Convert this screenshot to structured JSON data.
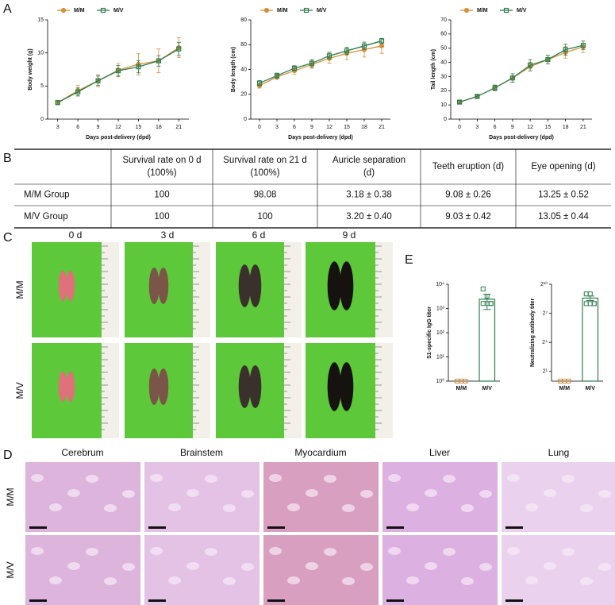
{
  "panels": [
    "A",
    "B",
    "C",
    "D",
    "E"
  ],
  "chart_data": [
    {
      "type": "line",
      "xlabel": "Days post-delivery (dpd)",
      "ylabel": "Body weight (g)",
      "x": [
        3,
        6,
        9,
        12,
        15,
        18,
        21
      ],
      "xlim": [
        1.5,
        22.5
      ],
      "xticks": [
        3,
        6,
        9,
        12,
        15,
        18,
        21
      ],
      "ylim": [
        0,
        15
      ],
      "yticks": [
        0,
        5,
        10,
        15
      ],
      "series": [
        {
          "name": "M/M",
          "color": "#d4903a",
          "marker": "circle",
          "values": [
            2.5,
            4.3,
            5.8,
            7.4,
            8.3,
            8.8,
            10.8
          ],
          "errors": [
            0.3,
            0.8,
            0.9,
            1.0,
            1.6,
            1.8,
            1.5
          ]
        },
        {
          "name": "M/V",
          "color": "#2e7d4f",
          "marker": "square",
          "values": [
            2.5,
            4.1,
            5.8,
            7.3,
            7.9,
            8.8,
            10.6
          ],
          "errors": [
            0.3,
            0.6,
            0.7,
            0.8,
            0.9,
            0.8,
            1.0
          ]
        }
      ]
    },
    {
      "type": "line",
      "xlabel": "Days post-delivery (dpd)",
      "ylabel": "Body length (cm)",
      "x": [
        0,
        3,
        6,
        9,
        12,
        15,
        18,
        21
      ],
      "xlim": [
        -1.5,
        22.5
      ],
      "xticks": [
        0,
        3,
        6,
        9,
        12,
        15,
        18,
        21
      ],
      "ylim": [
        0,
        80
      ],
      "yticks": [
        0,
        20,
        40,
        60,
        80
      ],
      "series": [
        {
          "name": "M/M",
          "color": "#d4903a",
          "marker": "circle",
          "values": [
            27,
            34,
            39,
            44,
            49,
            53,
            56,
            59
          ],
          "errors": [
            2,
            2,
            3,
            3,
            4,
            5,
            6,
            6
          ]
        },
        {
          "name": "M/V",
          "color": "#2e7d4f",
          "marker": "square",
          "values": [
            29,
            35,
            41,
            45,
            51,
            55,
            59,
            63
          ],
          "errors": [
            2,
            2,
            2,
            3,
            3,
            3,
            3,
            2
          ]
        }
      ]
    },
    {
      "type": "line",
      "xlabel": "Days post-delivery (dpd)",
      "ylabel": "Tail length (cm)",
      "x": [
        0,
        3,
        6,
        9,
        12,
        15,
        18,
        21
      ],
      "xlim": [
        -1.5,
        22.5
      ],
      "xticks": [
        0,
        3,
        6,
        9,
        12,
        15,
        18,
        21
      ],
      "ylim": [
        0,
        70
      ],
      "yticks": [
        0,
        10,
        20,
        30,
        40,
        50,
        60,
        70
      ],
      "series": [
        {
          "name": "M/M",
          "color": "#d4903a",
          "marker": "circle",
          "values": [
            12,
            16,
            22,
            29,
            37,
            42,
            47,
            51
          ],
          "errors": [
            1,
            1,
            2,
            3,
            3,
            3,
            4,
            4
          ]
        },
        {
          "name": "M/V",
          "color": "#2e7d4f",
          "marker": "square",
          "values": [
            12,
            16,
            22,
            29,
            38,
            42,
            49,
            52
          ],
          "errors": [
            1,
            1,
            2,
            3,
            4,
            3,
            4,
            3
          ]
        }
      ]
    },
    {
      "type": "bar",
      "log_base": 10,
      "ylabel": "S1-specific IgG titer",
      "categories": [
        "M/M",
        "M/V"
      ],
      "colors": [
        "#d4903a",
        "#2e7d4f"
      ],
      "values": [
        1,
        2400
      ],
      "errors": [
        0,
        1500
      ],
      "points": [
        [
          1,
          1,
          1,
          1,
          1,
          1
        ],
        [
          6400,
          3200,
          1600,
          1600,
          1600,
          1600
        ]
      ],
      "ylim": [
        1,
        10000
      ],
      "yticks": [
        {
          "value": 1,
          "label": "10⁰"
        },
        {
          "value": 10,
          "label": "10¹"
        },
        {
          "value": 100,
          "label": "10²"
        },
        {
          "value": 1000,
          "label": "10³"
        },
        {
          "value": 10000,
          "label": "10⁴"
        }
      ]
    },
    {
      "type": "bar",
      "log_base": 2,
      "ylabel": "Neutralizing antibody titer",
      "categories": [
        "M/M",
        "M/V"
      ],
      "colors": [
        "#d4903a",
        "#2e7d4f"
      ],
      "values": [
        1,
        380
      ],
      "errors": [
        0,
        60
      ],
      "points": [
        [
          1,
          1,
          1,
          1,
          1,
          1
        ],
        [
          512,
          512,
          256,
          256,
          256,
          256
        ]
      ],
      "ylim": [
        1,
        1024
      ],
      "yticks": [
        {
          "value": 2,
          "label": "2¹"
        },
        {
          "value": 16,
          "label": "2⁴"
        },
        {
          "value": 128,
          "label": "2⁷"
        },
        {
          "value": 1024,
          "label": "2¹⁰"
        }
      ]
    }
  ],
  "table": {
    "headers": [
      [
        "Survival rate on 0 d",
        "(100%)"
      ],
      [
        "Survival rate on 21 d",
        "(100%)"
      ],
      [
        "Auricle separation",
        "(d)"
      ],
      [
        "Teeth eruption (d)"
      ],
      [
        "Eye opening (d)"
      ]
    ],
    "rows": [
      [
        "M/M Group",
        100,
        98.08,
        "3.18 ± 0.38",
        "9.08 ± 0.26",
        "13.25 ± 0.52"
      ],
      [
        "M/V Group",
        100,
        100,
        "3.20 ± 0.40",
        "9.03 ± 0.42",
        "13.05 ± 0.44"
      ]
    ]
  },
  "photos": {
    "columns": [
      "0 d",
      "3 d",
      "6 d",
      "9 d"
    ],
    "rows": [
      "M/M",
      "M/V"
    ]
  },
  "histology": {
    "columns": [
      "Cerebrum",
      "Brainstem",
      "Myocardium",
      "Liver",
      "Lung"
    ],
    "rows": [
      "M/M",
      "M/V"
    ]
  }
}
